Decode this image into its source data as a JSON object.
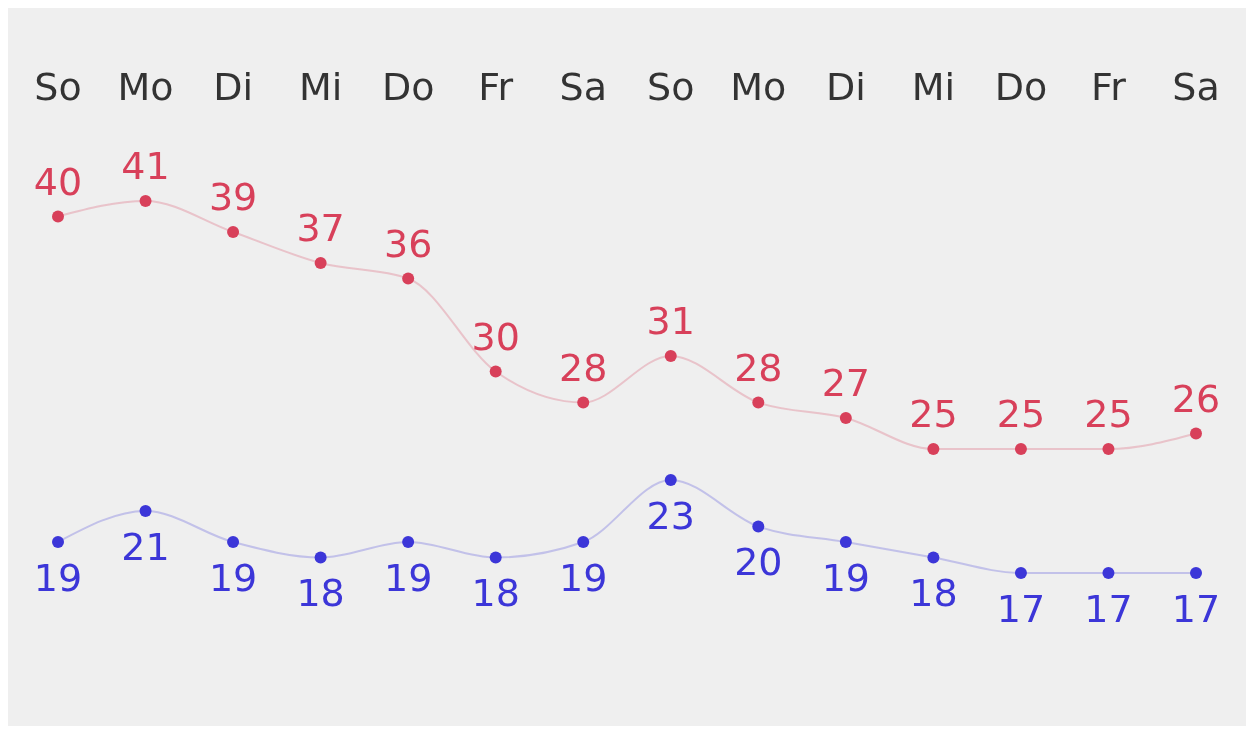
{
  "chart_data": {
    "type": "line",
    "categories": [
      "So",
      "Mo",
      "Di",
      "Mi",
      "Do",
      "Fr",
      "Sa",
      "So",
      "Mo",
      "Di",
      "Mi",
      "Do",
      "Fr",
      "Sa"
    ],
    "series": [
      {
        "color": "#d8405a",
        "values": [
          40,
          41,
          39,
          37,
          36,
          30,
          28,
          31,
          28,
          27,
          25,
          25,
          25,
          26
        ]
      },
      {
        "color": "#3c36d8",
        "values": [
          19,
          21,
          19,
          18,
          19,
          18,
          19,
          23,
          20,
          19,
          18,
          17,
          17,
          17
        ]
      }
    ],
    "data_labels": true,
    "marker": "circle"
  }
}
